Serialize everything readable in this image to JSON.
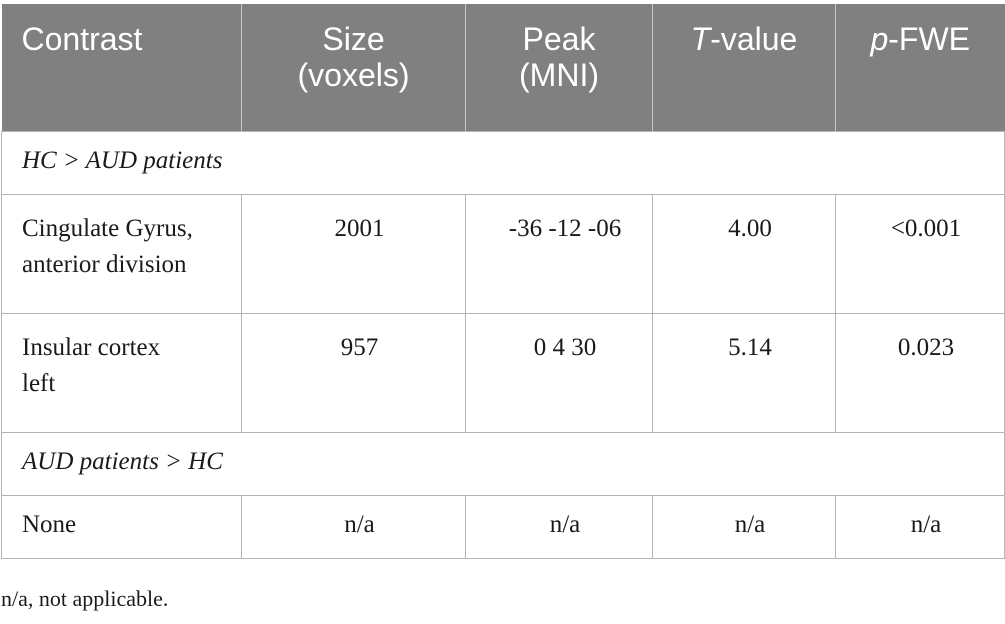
{
  "table": {
    "headers": {
      "contrast": "Contrast",
      "size_line1": "Size",
      "size_line2": "(voxels)",
      "peak_line1": "Peak",
      "peak_line2": "(MNI)",
      "tvalue_italic": "T",
      "tvalue_rest": "-value",
      "pfwe_italic": "p",
      "pfwe_rest": "-FWE"
    },
    "sections": [
      {
        "label": "HC > AUD patients",
        "rows": [
          {
            "region_line1": "Cingulate Gyrus,",
            "region_line2": "anterior division",
            "size": "2001",
            "peak": "-36 -12 -06",
            "t": "4.00",
            "p": "<0.001"
          },
          {
            "region_line1": "Insular cortex",
            "region_line2": "left",
            "size": "957",
            "peak": "0 4 30",
            "t": "5.14",
            "p": "0.023"
          }
        ]
      },
      {
        "label": "AUD patients > HC",
        "rows": [
          {
            "region": "None",
            "size": "n/a",
            "peak": "n/a",
            "t": "n/a",
            "p": "n/a"
          }
        ]
      }
    ],
    "header_bg": "#808080",
    "border_color": "#b4b4b4"
  },
  "footnote": "n/a, not applicable."
}
